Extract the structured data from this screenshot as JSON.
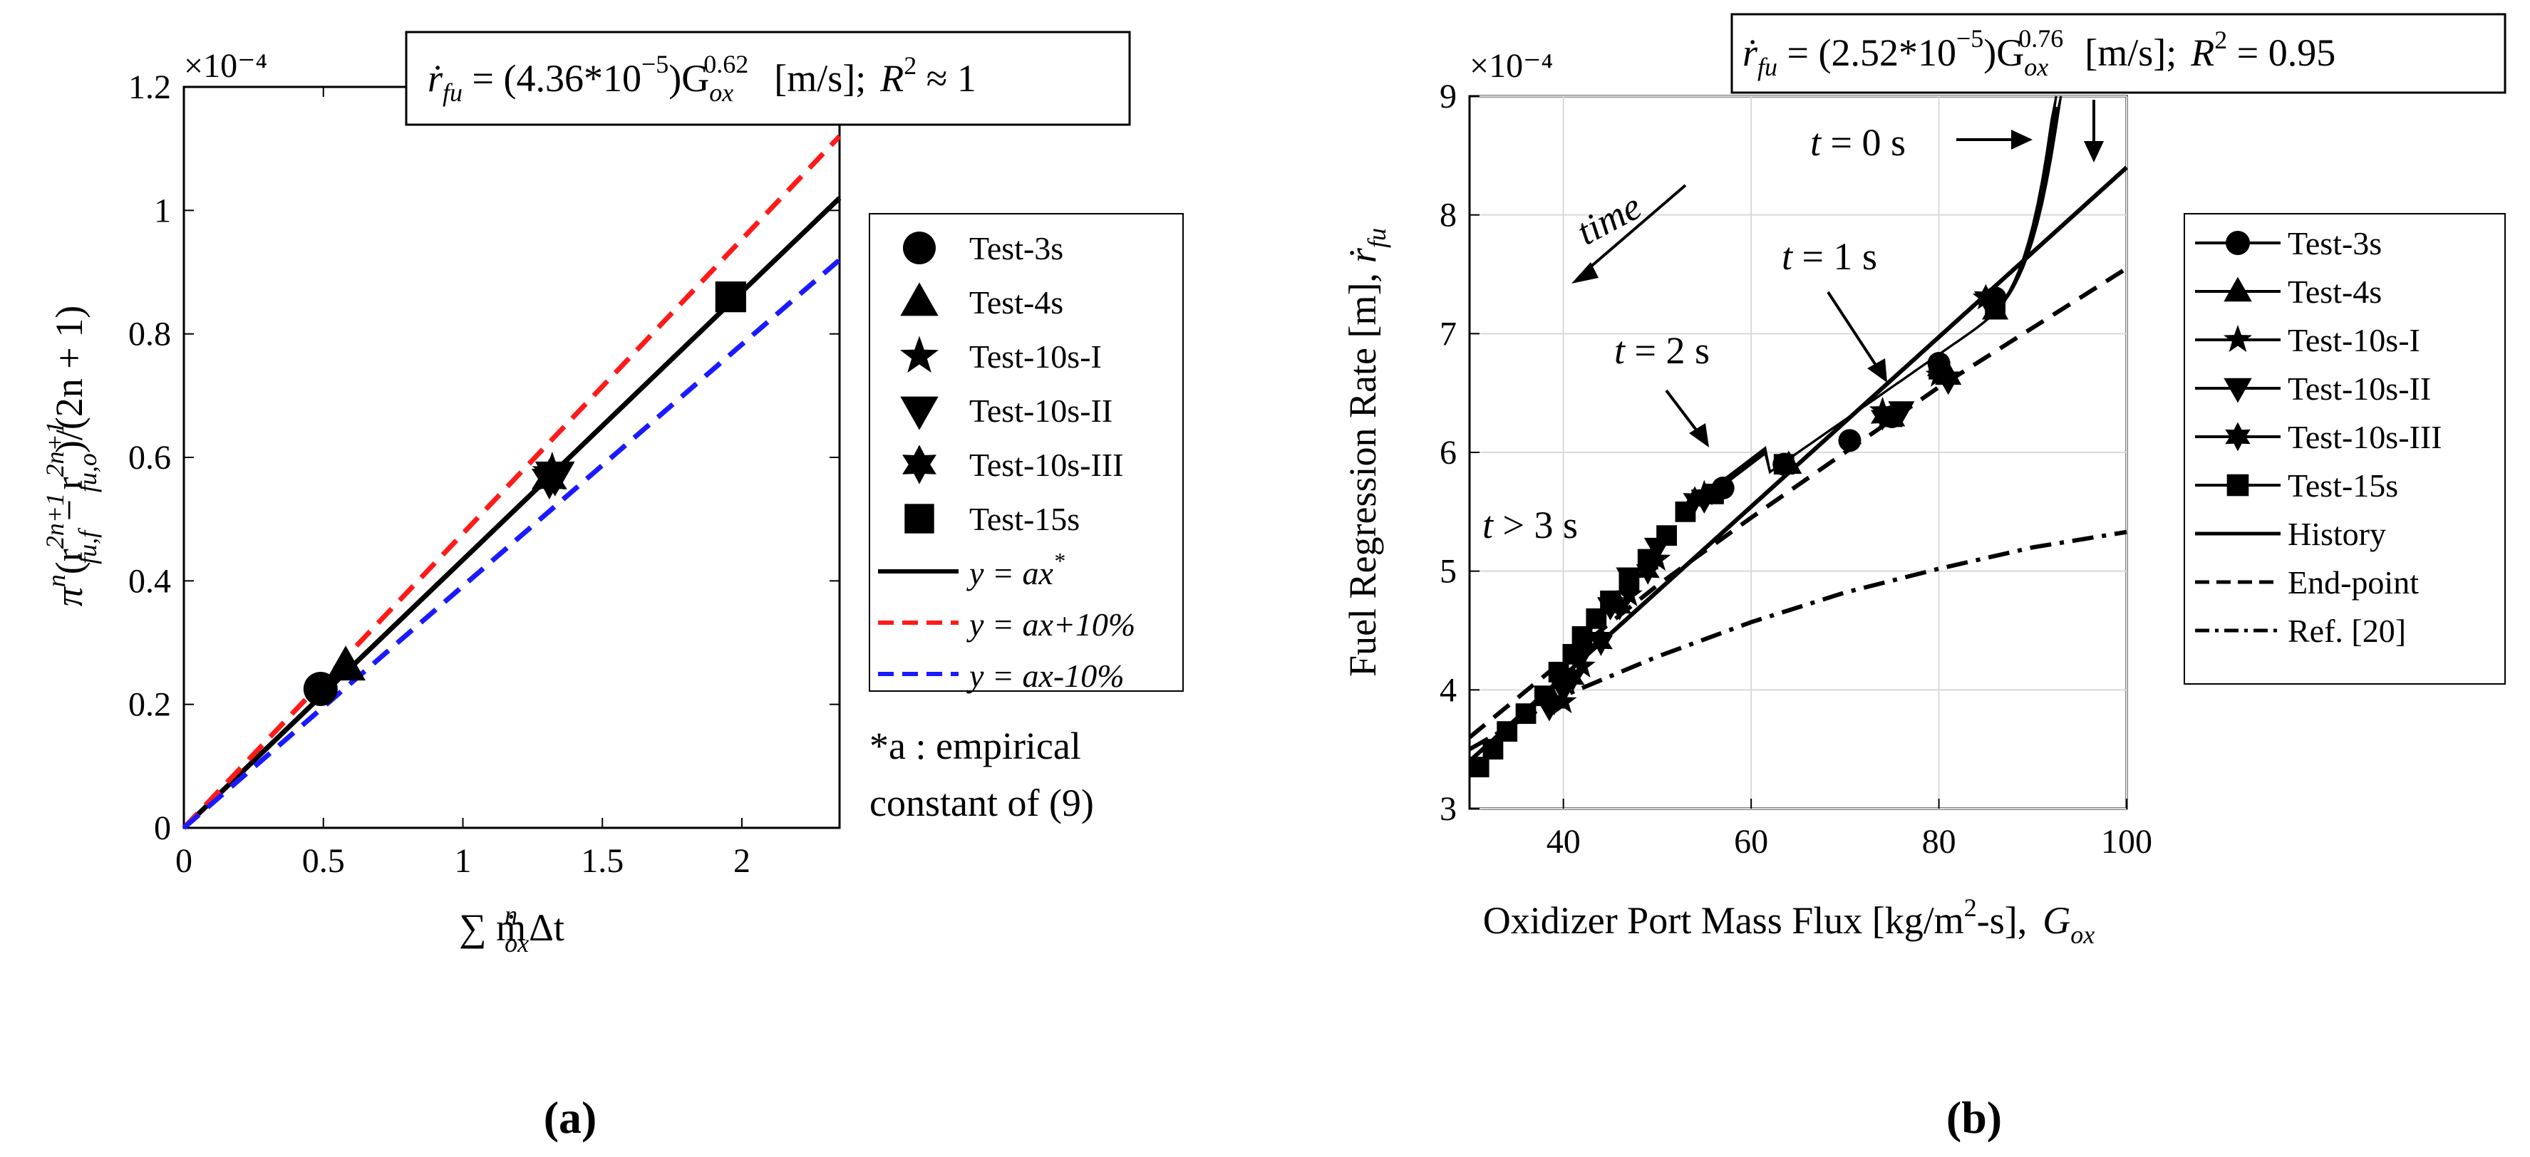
{
  "colors": {
    "black": "#000000",
    "red": "#ff1a1a",
    "blue": "#1a1aff"
  },
  "chart_data": [
    {
      "type": "scatter",
      "panel_label": "(a)",
      "exponent_label": "×10⁻⁴",
      "annotation": {
        "symbol": "ṙ",
        "sub": "fu",
        "eq": " = (4.36*10",
        "sup1": "−5",
        "mid": ")G",
        "sub2": "ox",
        "sup2": "0.62",
        "units": "[m/s];",
        "r": "R",
        "r_sup": "2",
        "tail": " ≈ 1"
      },
      "xlabel": "∑ ṁ",
      "xlabel_sup": "n",
      "xlabel_sub": "ox",
      "xlabel_tail": "Δt",
      "ylabel": "π",
      "ylabel_sup": "n",
      "ylabel_rest": "(r",
      "ylabel_sup2": "2n+1",
      "ylabel_sub2": "fu,f",
      "ylabel_mid": " − r",
      "ylabel_sup3": "2n+1",
      "ylabel_sub3": "fu,o",
      "ylabel_tail": ")/(2n + 1)",
      "xlim": [
        0,
        2.35
      ],
      "ylim": [
        0,
        1.2
      ],
      "xticks": [
        "0",
        "0.5",
        "1",
        "1.5",
        "2"
      ],
      "xtick_values": [
        0,
        0.5,
        1,
        1.5,
        2
      ],
      "yticks": [
        "0",
        "0.2",
        "0.4",
        "0.6",
        "0.8",
        "1",
        "1.2"
      ],
      "ytick_values": [
        0,
        0.2,
        0.4,
        0.6,
        0.8,
        1.0,
        1.2
      ],
      "grid": false,
      "series": [
        {
          "name": "Test-3s",
          "marker": "circle",
          "x": [
            0.49
          ],
          "y": [
            0.225
          ]
        },
        {
          "name": "Test-4s",
          "marker": "triangle-up",
          "x": [
            0.58
          ],
          "y": [
            0.262
          ]
        },
        {
          "name": "Test-10s-I",
          "marker": "star5",
          "x": [
            1.32
          ],
          "y": [
            0.575
          ]
        },
        {
          "name": "Test-10s-II",
          "marker": "triangle-down",
          "x": [
            1.33
          ],
          "y": [
            0.57
          ]
        },
        {
          "name": "Test-10s-III",
          "marker": "hexagram",
          "x": [
            1.31
          ],
          "y": [
            0.565
          ]
        },
        {
          "name": "Test-15s",
          "marker": "square",
          "x": [
            1.96
          ],
          "y": [
            0.86
          ]
        }
      ],
      "lines": [
        {
          "name": "y = ax",
          "name_sup": "*",
          "style": "solid",
          "color": "#000000",
          "x": [
            0,
            2.35
          ],
          "y": [
            0,
            1.02
          ]
        },
        {
          "name": "y = ax+10%",
          "style": "dashed",
          "color": "#ff1a1a",
          "x": [
            0,
            2.35
          ],
          "y": [
            0,
            1.12
          ]
        },
        {
          "name": "y = ax-10%",
          "style": "dashed",
          "color": "#1a1aff",
          "x": [
            0,
            2.35
          ],
          "y": [
            0,
            0.92
          ]
        }
      ],
      "legend_position": "outside-right",
      "note_line1": "*a : empirical",
      "note_line2": "constant of (9)"
    },
    {
      "type": "line",
      "panel_label": "(b)",
      "exponent_label": "×10⁻⁴",
      "annotation": {
        "symbol": "ṙ",
        "sub": "fu",
        "eq": " = (2.52*10",
        "sup1": "−5",
        "mid": ")G",
        "sub2": "ox",
        "sup2": "0.76",
        "units": "[m/s];",
        "r": "R",
        "r_sup": "2",
        "tail": " = 0.95"
      },
      "xlabel": "Oxidizer Port Mass Flux [kg/m",
      "xlabel_sup": "2",
      "xlabel_tail": "-s],",
      "xlabel_sym": "G",
      "xlabel_sym_sub": "ox",
      "ylabel": "Fuel Regression Rate [m],",
      "ylabel_sym": "ṙ",
      "ylabel_sym_sub": "fu",
      "xlim": [
        30,
        100
      ],
      "ylim": [
        3,
        9
      ],
      "xticks": [
        "40",
        "60",
        "80",
        "100"
      ],
      "xtick_values": [
        40,
        60,
        80,
        100
      ],
      "yticks": [
        "3",
        "4",
        "5",
        "6",
        "7",
        "8",
        "9"
      ],
      "ytick_values": [
        3,
        4,
        5,
        6,
        7,
        8,
        9
      ],
      "grid": true,
      "time_labels": [
        {
          "t": "t",
          "rest": " = 0 s"
        },
        {
          "t": "t",
          "rest": " = 1 s"
        },
        {
          "t": "t",
          "rest": " = 2 s"
        },
        {
          "t": "t",
          "rest": " > 3 s"
        }
      ],
      "time_arrow_label": "time",
      "series": [
        {
          "name": "Test-3s",
          "marker": "circle",
          "x": [
            86,
            80,
            75,
            70.5,
            63.5,
            57
          ],
          "y": [
            7.3,
            6.75,
            6.3,
            6.1,
            5.9,
            5.7
          ]
        },
        {
          "name": "Test-4s",
          "marker": "triangle-up",
          "x": [
            86,
            81,
            75,
            64
          ],
          "y": [
            7.2,
            6.65,
            6.3,
            5.9
          ]
        },
        {
          "name": "Test-10s-I",
          "marker": "star5",
          "x": [
            85,
            80,
            74,
            55,
            50,
            47,
            44,
            42,
            40
          ],
          "y": [
            7.3,
            6.65,
            6.35,
            5.65,
            5.1,
            4.8,
            4.45,
            4.2,
            3.9
          ]
        },
        {
          "name": "Test-10s-II",
          "marker": "triangle-down",
          "x": [
            86,
            81,
            76,
            55,
            50,
            47,
            45,
            42,
            40,
            38.5
          ],
          "y": [
            7.25,
            6.6,
            6.35,
            5.6,
            5.2,
            4.95,
            4.7,
            4.3,
            4.0,
            3.85
          ]
        },
        {
          "name": "Test-10s-III",
          "marker": "hexagram",
          "x": [
            85,
            80,
            74,
            54,
            49,
            46,
            44,
            41,
            39
          ],
          "y": [
            7.3,
            6.7,
            6.3,
            5.6,
            5.0,
            4.7,
            4.4,
            4.1,
            3.9
          ]
        },
        {
          "name": "Test-15s",
          "marker": "square",
          "x": [
            86,
            80,
            75,
            63.5,
            56,
            53,
            51,
            49,
            47,
            45,
            43.5,
            42,
            41,
            39.5,
            38,
            36,
            34,
            32.5,
            31
          ],
          "y": [
            7.25,
            6.7,
            6.3,
            5.9,
            5.65,
            5.5,
            5.3,
            5.1,
            4.9,
            4.75,
            4.6,
            4.45,
            4.3,
            4.15,
            3.95,
            3.8,
            3.65,
            3.5,
            3.35
          ]
        }
      ],
      "lines": [
        {
          "name": "History",
          "style": "solid",
          "x": [
            30,
            100
          ],
          "y": [
            3.4,
            8.4
          ]
        },
        {
          "name": "End-point",
          "style": "dashed",
          "x": [
            30,
            40,
            50,
            60,
            70,
            80,
            90,
            100
          ],
          "y": [
            3.6,
            4.25,
            4.88,
            5.45,
            6.0,
            6.55,
            7.05,
            7.55
          ]
        },
        {
          "name": "Ref. [20]",
          "style": "dashdot",
          "x": [
            30,
            40,
            50,
            60,
            70,
            80,
            90,
            100
          ],
          "y": [
            3.5,
            3.95,
            4.28,
            4.57,
            4.82,
            5.02,
            5.2,
            5.33
          ]
        }
      ],
      "legend_position": "outside-right"
    }
  ]
}
